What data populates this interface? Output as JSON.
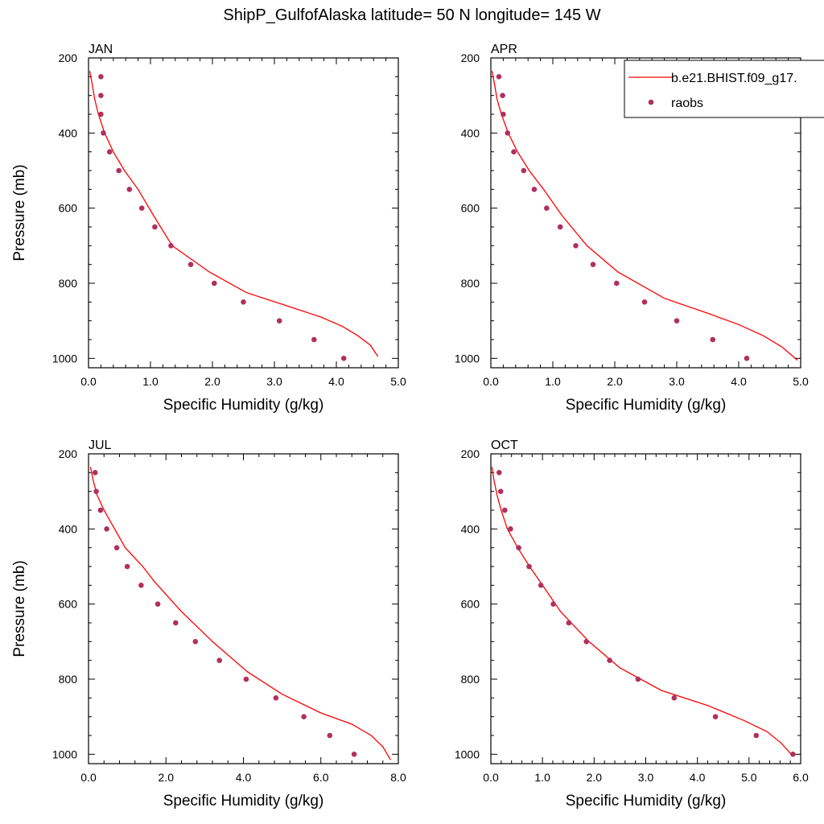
{
  "title": "ShipP_GulfofAlaska  latitude= 50 N longitude= 145 W",
  "legend": {
    "placement": "top-right of APR panel",
    "model_label": "b.e21.BHIST.f09_g17.",
    "obs_label": "raobs",
    "model_color": "#ff0000",
    "obs_color": "#b03060"
  },
  "chart_data": [
    {
      "type": "line",
      "panel": "JAN",
      "title": "JAN",
      "xlabel": "Specific Humidity (g/kg)",
      "ylabel": "Pressure (mb)",
      "xlim": [
        0,
        5
      ],
      "ylim": [
        200,
        1025
      ],
      "y_reversed": true,
      "xticks": [
        "0.0",
        "1.0",
        "2.0",
        "3.0",
        "4.0",
        "5.0"
      ],
      "yticks": [
        "200",
        "400",
        "600",
        "800",
        "1000"
      ],
      "series": [
        {
          "name": "b.e21.BHIST.f09_g17.",
          "style": "line",
          "x": [
            0.02,
            0.06,
            0.1,
            0.16,
            0.26,
            0.4,
            0.58,
            0.8,
            1.05,
            1.35,
            1.95,
            2.55,
            3.2,
            3.75,
            4.1,
            4.35,
            4.55,
            4.67
          ],
          "y": [
            235,
            270,
            310,
            350,
            400,
            450,
            500,
            550,
            620,
            700,
            770,
            825,
            860,
            890,
            915,
            940,
            965,
            995
          ]
        },
        {
          "name": "raobs",
          "style": "markers",
          "x": [
            0.2,
            0.2,
            0.2,
            0.24,
            0.34,
            0.49,
            0.66,
            0.86,
            1.07,
            1.33,
            1.65,
            2.03,
            2.5,
            3.08,
            3.64,
            4.12
          ],
          "y": [
            250,
            300,
            350,
            400,
            450,
            500,
            550,
            600,
            650,
            700,
            750,
            800,
            850,
            900,
            950,
            1000
          ]
        }
      ]
    },
    {
      "type": "line",
      "panel": "APR",
      "title": "APR",
      "xlabel": "Specific Humidity (g/kg)",
      "ylabel": "",
      "xlim": [
        0,
        5
      ],
      "ylim": [
        200,
        1025
      ],
      "y_reversed": true,
      "xticks": [
        "0.0",
        "1.0",
        "2.0",
        "3.0",
        "4.0",
        "5.0"
      ],
      "yticks": [
        "200",
        "400",
        "600",
        "800",
        "1000"
      ],
      "series": [
        {
          "name": "b.e21.BHIST.f09_g17.",
          "style": "line",
          "x": [
            0.02,
            0.06,
            0.1,
            0.17,
            0.28,
            0.43,
            0.62,
            0.85,
            1.15,
            1.55,
            2.05,
            2.8,
            3.5,
            4.0,
            4.4,
            4.7,
            4.95
          ],
          "y": [
            235,
            270,
            310,
            350,
            400,
            450,
            500,
            550,
            620,
            700,
            770,
            840,
            880,
            910,
            940,
            970,
            1005
          ]
        },
        {
          "name": "raobs",
          "style": "markers",
          "x": [
            0.13,
            0.19,
            0.2,
            0.27,
            0.37,
            0.53,
            0.7,
            0.9,
            1.12,
            1.37,
            1.65,
            2.03,
            2.48,
            3.0,
            3.58,
            4.13
          ],
          "y": [
            250,
            300,
            350,
            400,
            450,
            500,
            550,
            600,
            650,
            700,
            750,
            800,
            850,
            900,
            950,
            1000
          ]
        }
      ]
    },
    {
      "type": "line",
      "panel": "JUL",
      "title": "JUL",
      "xlabel": "Specific Humidity (g/kg)",
      "ylabel": "Pressure (mb)",
      "xlim": [
        0,
        8
      ],
      "ylim": [
        200,
        1025
      ],
      "y_reversed": true,
      "xticks": [
        "0.0",
        "2.0",
        "4.0",
        "6.0",
        "8.0"
      ],
      "yticks": [
        "200",
        "400",
        "600",
        "800",
        "1000"
      ],
      "series": [
        {
          "name": "b.e21.BHIST.f09_g17.",
          "style": "line",
          "x": [
            0.05,
            0.12,
            0.22,
            0.4,
            0.62,
            0.95,
            1.4,
            1.7,
            2.4,
            3.2,
            4.1,
            5.0,
            6.0,
            6.8,
            7.3,
            7.6,
            7.8
          ],
          "y": [
            235,
            270,
            310,
            350,
            390,
            450,
            500,
            540,
            620,
            700,
            780,
            840,
            890,
            920,
            950,
            980,
            1015
          ]
        },
        {
          "name": "raobs",
          "style": "markers",
          "x": [
            0.17,
            0.2,
            0.31,
            0.47,
            0.73,
            1.0,
            1.36,
            1.79,
            2.25,
            2.76,
            3.38,
            4.07,
            4.84,
            5.56,
            6.23,
            6.86
          ],
          "y": [
            250,
            300,
            350,
            400,
            450,
            500,
            550,
            600,
            650,
            700,
            750,
            800,
            850,
            900,
            950,
            1000
          ]
        }
      ]
    },
    {
      "type": "line",
      "panel": "OCT",
      "title": "OCT",
      "xlabel": "Specific Humidity (g/kg)",
      "ylabel": "",
      "xlim": [
        0,
        6
      ],
      "ylim": [
        200,
        1025
      ],
      "y_reversed": true,
      "xticks": [
        "0.0",
        "1.0",
        "2.0",
        "3.0",
        "4.0",
        "5.0",
        "6.0"
      ],
      "yticks": [
        "200",
        "400",
        "600",
        "800",
        "1000"
      ],
      "series": [
        {
          "name": "b.e21.BHIST.f09_g17.",
          "style": "line",
          "x": [
            0.02,
            0.06,
            0.12,
            0.2,
            0.32,
            0.52,
            0.75,
            1.0,
            1.35,
            1.9,
            2.5,
            3.3,
            4.2,
            4.9,
            5.35,
            5.62,
            5.85
          ],
          "y": [
            235,
            270,
            310,
            350,
            400,
            450,
            500,
            550,
            620,
            700,
            770,
            830,
            870,
            910,
            940,
            970,
            1005
          ]
        },
        {
          "name": "raobs",
          "style": "markers",
          "x": [
            0.16,
            0.19,
            0.27,
            0.38,
            0.54,
            0.74,
            0.97,
            1.21,
            1.51,
            1.85,
            2.3,
            2.85,
            3.55,
            4.35,
            5.14,
            5.85
          ],
          "y": [
            250,
            300,
            350,
            400,
            450,
            500,
            550,
            600,
            650,
            700,
            750,
            800,
            850,
            900,
            950,
            1000
          ]
        }
      ]
    }
  ]
}
